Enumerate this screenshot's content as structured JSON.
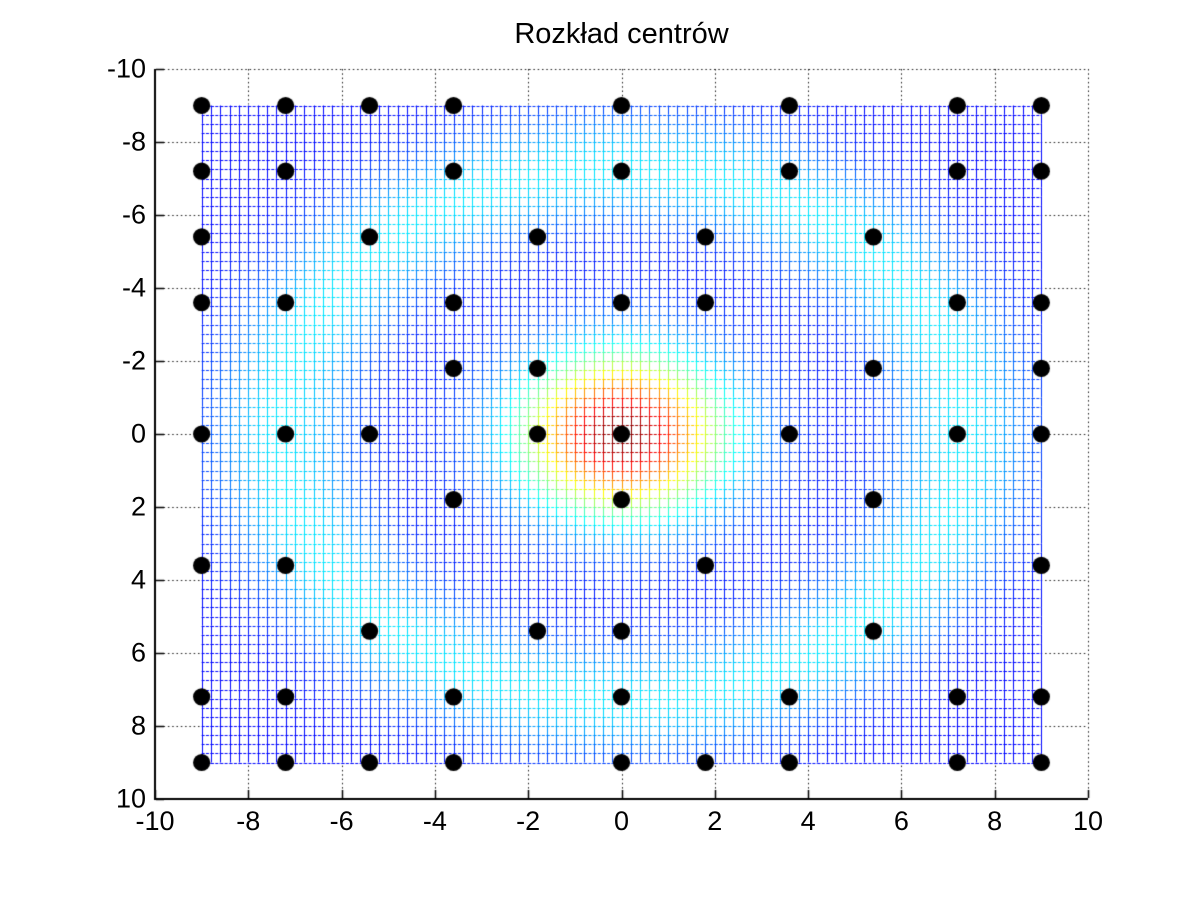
{
  "figure": {
    "background": "#ffffff",
    "axis_color": "#000000",
    "grid_style": "dotted"
  },
  "title": "Rozkład centrów",
  "chart_data": {
    "type": "scatter",
    "title": "Rozkład centrów",
    "xlabel": "",
    "ylabel": "",
    "xlim": [
      -10,
      10
    ],
    "ylim": [
      -10,
      10
    ],
    "y_axis_reversed": true,
    "grid": "dotted",
    "legend_position": "none",
    "x_ticks": [
      -10,
      -8,
      -6,
      -4,
      -2,
      0,
      2,
      4,
      6,
      8,
      10
    ],
    "y_ticks": [
      -10,
      -8,
      -6,
      -4,
      -2,
      0,
      2,
      4,
      6,
      8,
      10
    ],
    "marker": {
      "shape": "circle",
      "color": "#000000",
      "radius_px": 8.6
    },
    "centers": [
      [
        -9,
        -9
      ],
      [
        -7.2,
        -9
      ],
      [
        -5.4,
        -9
      ],
      [
        -3.6,
        -9
      ],
      [
        0,
        -9
      ],
      [
        3.6,
        -9
      ],
      [
        7.2,
        -9
      ],
      [
        9,
        -9
      ],
      [
        -9,
        -7.2
      ],
      [
        -7.2,
        -7.2
      ],
      [
        -3.6,
        -7.2
      ],
      [
        0,
        -7.2
      ],
      [
        3.6,
        -7.2
      ],
      [
        7.2,
        -7.2
      ],
      [
        9,
        -7.2
      ],
      [
        -9,
        -5.4
      ],
      [
        -5.4,
        -5.4
      ],
      [
        -1.8,
        -5.4
      ],
      [
        1.8,
        -5.4
      ],
      [
        5.4,
        -5.4
      ],
      [
        -9,
        -3.6
      ],
      [
        -7.2,
        -3.6
      ],
      [
        -3.6,
        -3.6
      ],
      [
        0,
        -3.6
      ],
      [
        1.8,
        -3.6
      ],
      [
        7.2,
        -3.6
      ],
      [
        9,
        -3.6
      ],
      [
        -3.6,
        -1.8
      ],
      [
        -1.8,
        -1.8
      ],
      [
        5.4,
        -1.8
      ],
      [
        9,
        -1.8
      ],
      [
        -9,
        0
      ],
      [
        -7.2,
        0
      ],
      [
        -5.4,
        0
      ],
      [
        -1.8,
        0
      ],
      [
        0,
        0
      ],
      [
        3.6,
        0
      ],
      [
        7.2,
        0
      ],
      [
        9,
        0
      ],
      [
        -3.6,
        1.8
      ],
      [
        0,
        1.8
      ],
      [
        5.4,
        1.8
      ],
      [
        -9,
        3.6
      ],
      [
        -7.2,
        3.6
      ],
      [
        1.8,
        3.6
      ],
      [
        9,
        3.6
      ],
      [
        -5.4,
        5.4
      ],
      [
        -1.8,
        5.4
      ],
      [
        0,
        5.4
      ],
      [
        5.4,
        5.4
      ],
      [
        -9,
        7.2
      ],
      [
        -7.2,
        7.2
      ],
      [
        -3.6,
        7.2
      ],
      [
        0,
        7.2
      ],
      [
        3.6,
        7.2
      ],
      [
        7.2,
        7.2
      ],
      [
        9,
        7.2
      ],
      [
        -9,
        9
      ],
      [
        -7.2,
        9
      ],
      [
        -5.4,
        9
      ],
      [
        -3.6,
        9
      ],
      [
        0,
        9
      ],
      [
        1.8,
        9
      ],
      [
        3.6,
        9
      ],
      [
        7.2,
        9
      ],
      [
        9,
        9
      ]
    ],
    "mesh": {
      "description": "wireframe mesh colored with jet colormap, hot gaussian bump at origin with cyan halo ring",
      "x_range": [
        -9,
        9
      ],
      "x_step": 0.2,
      "y_range": [
        -9,
        9
      ],
      "y_step": 0.25,
      "colormap": "jet",
      "color_model": {
        "base": 0.13,
        "peak_amp": 0.87,
        "peak_falloff": 5.0,
        "ring_amp": 0.22,
        "ring_radius": 7.3,
        "ring_width": 2.2
      }
    }
  }
}
